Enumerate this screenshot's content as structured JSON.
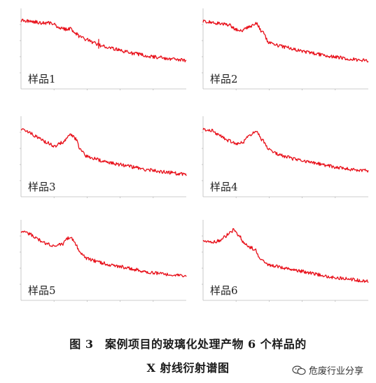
{
  "chart_data": [
    {
      "type": "line",
      "sample_label": "样品1",
      "series_color": "#e8101a",
      "xlim": [
        0,
        100
      ],
      "ylim": [
        0,
        100
      ],
      "x": [
        0,
        6,
        12,
        18,
        24,
        27,
        30,
        33,
        36,
        40,
        44,
        48,
        52,
        56,
        60,
        64,
        68,
        72,
        76,
        80,
        84,
        88,
        92,
        96,
        100
      ],
      "y": [
        85,
        84,
        82,
        82,
        76,
        74,
        75,
        69,
        64,
        61,
        57,
        54,
        52,
        50,
        48,
        46,
        44,
        43,
        41,
        40,
        39,
        38,
        37,
        36,
        35
      ],
      "spike": {
        "x": 47,
        "y": 62
      }
    },
    {
      "type": "line",
      "sample_label": "样品2",
      "series_color": "#e8101a",
      "xlim": [
        0,
        100
      ],
      "ylim": [
        0,
        100
      ],
      "x": [
        0,
        5,
        10,
        15,
        20,
        24,
        28,
        32,
        36,
        40,
        45,
        50,
        55,
        60,
        65,
        70,
        75,
        80,
        85,
        90,
        95,
        100
      ],
      "y": [
        84,
        83,
        81,
        80,
        74,
        73,
        77,
        82,
        70,
        57,
        54,
        52,
        49,
        47,
        45,
        43,
        41,
        40,
        38,
        37,
        36,
        35
      ]
    },
    {
      "type": "line",
      "sample_label": "样品3",
      "series_color": "#e8101a",
      "xlim": [
        0,
        100
      ],
      "ylim": [
        0,
        100
      ],
      "x": [
        0,
        5,
        10,
        15,
        20,
        25,
        30,
        33,
        36,
        40,
        45,
        50,
        55,
        60,
        65,
        70,
        75,
        80,
        85,
        90,
        95,
        100
      ],
      "y": [
        84,
        80,
        74,
        68,
        63,
        67,
        78,
        72,
        58,
        50,
        47,
        44,
        42,
        40,
        38,
        36,
        34,
        33,
        31,
        30,
        29,
        28
      ]
    },
    {
      "type": "line",
      "sample_label": "样品4",
      "series_color": "#e8101a",
      "xlim": [
        0,
        100
      ],
      "ylim": [
        0,
        100
      ],
      "x": [
        0,
        5,
        10,
        15,
        20,
        24,
        28,
        32,
        36,
        40,
        45,
        50,
        55,
        60,
        65,
        70,
        75,
        80,
        85,
        90,
        95,
        100
      ],
      "y": [
        84,
        82,
        76,
        70,
        66,
        68,
        76,
        82,
        70,
        58,
        53,
        50,
        47,
        45,
        43,
        41,
        39,
        37,
        35,
        34,
        33,
        32
      ]
    },
    {
      "type": "line",
      "sample_label": "样品5",
      "series_color": "#e8101a",
      "xlim": [
        0,
        100
      ],
      "ylim": [
        0,
        100
      ],
      "x": [
        0,
        5,
        10,
        15,
        20,
        25,
        28,
        30,
        33,
        36,
        40,
        45,
        50,
        55,
        60,
        65,
        70,
        75,
        80,
        85,
        90,
        95,
        100
      ],
      "y": [
        86,
        83,
        76,
        71,
        67,
        70,
        77,
        79,
        70,
        58,
        52,
        49,
        46,
        44,
        42,
        40,
        38,
        36,
        34,
        33,
        32,
        31,
        30
      ]
    },
    {
      "type": "line",
      "sample_label": "样品6",
      "series_color": "#e8101a",
      "xlim": [
        0,
        100
      ],
      "ylim": [
        0,
        100
      ],
      "x": [
        0,
        5,
        10,
        13,
        16,
        19,
        22,
        25,
        28,
        31,
        35,
        40,
        45,
        50,
        55,
        60,
        65,
        70,
        75,
        80,
        85,
        90,
        95,
        100
      ],
      "y": [
        74,
        72,
        74,
        79,
        84,
        88,
        80,
        70,
        66,
        64,
        50,
        44,
        42,
        40,
        38,
        36,
        34,
        32,
        30,
        28,
        27,
        26,
        25,
        24
      ]
    }
  ],
  "caption": {
    "line1": "图 3　案例项目的玻璃化处理产物 6 个样品的",
    "line2": "X 射线衍射谱图"
  },
  "watermark": {
    "text": "危废行业分享",
    "icon": "wechat-icon"
  }
}
